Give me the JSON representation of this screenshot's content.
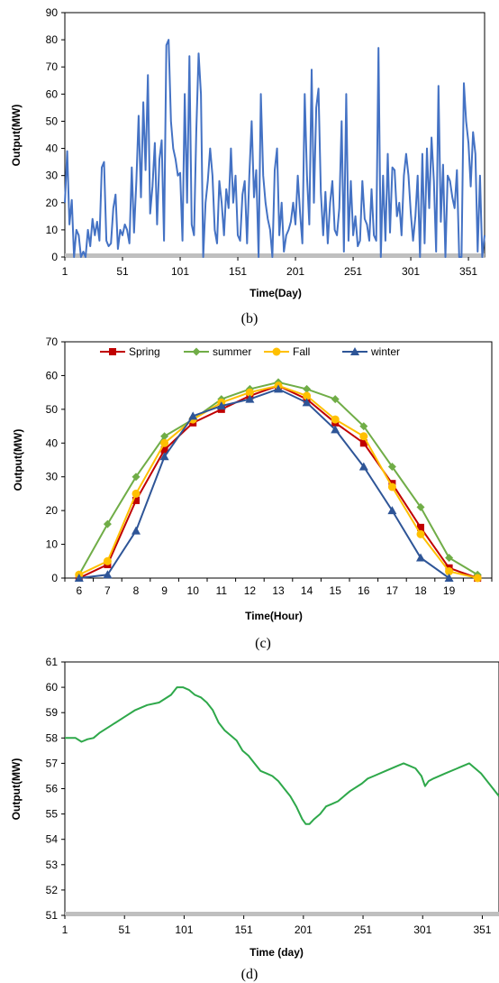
{
  "chart_data": [
    {
      "type": "line",
      "caption": "(b)",
      "xlabel": "Time(Day)",
      "ylabel": "Output(MW)",
      "xlim": [
        1,
        365
      ],
      "ylim": [
        0,
        90
      ],
      "xticks": [
        1,
        51,
        101,
        151,
        201,
        251,
        301,
        351
      ],
      "yticks": [
        0,
        10,
        20,
        30,
        40,
        50,
        60,
        70,
        80,
        90
      ],
      "grid": false,
      "series": [
        {
          "color": "#4472c4",
          "x": [
            1,
            3,
            5,
            7,
            9,
            11,
            13,
            15,
            17,
            19,
            21,
            23,
            25,
            27,
            29,
            31,
            33,
            35,
            37,
            39,
            41,
            43,
            45,
            47,
            49,
            51,
            53,
            55,
            57,
            59,
            61,
            63,
            65,
            67,
            69,
            71,
            73,
            75,
            77,
            79,
            81,
            83,
            85,
            87,
            89,
            91,
            93,
            95,
            97,
            99,
            101,
            103,
            105,
            107,
            109,
            111,
            113,
            115,
            117,
            119,
            121,
            123,
            125,
            127,
            129,
            131,
            133,
            135,
            137,
            139,
            141,
            143,
            145,
            147,
            149,
            151,
            153,
            155,
            157,
            159,
            161,
            163,
            165,
            167,
            169,
            171,
            173,
            175,
            177,
            179,
            181,
            183,
            185,
            187,
            189,
            191,
            193,
            195,
            197,
            199,
            201,
            203,
            205,
            207,
            209,
            211,
            213,
            215,
            217,
            219,
            221,
            223,
            225,
            227,
            229,
            231,
            233,
            235,
            237,
            239,
            241,
            243,
            245,
            247,
            249,
            251,
            253,
            255,
            257,
            259,
            261,
            263,
            265,
            267,
            269,
            271,
            273,
            275,
            277,
            279,
            281,
            283,
            285,
            287,
            289,
            291,
            293,
            295,
            297,
            299,
            301,
            303,
            305,
            307,
            309,
            311,
            313,
            315,
            317,
            319,
            321,
            323,
            325,
            327,
            329,
            331,
            333,
            335,
            337,
            339,
            341,
            343,
            345,
            347,
            349,
            351,
            353,
            355,
            357,
            359,
            361,
            363,
            365
          ],
          "y": [
            20,
            39,
            12,
            21,
            0,
            10,
            8,
            0,
            2,
            0,
            10,
            4,
            14,
            8,
            13,
            6,
            33,
            35,
            6,
            4,
            5,
            18,
            23,
            3,
            10,
            8,
            12,
            10,
            5,
            33,
            9,
            28,
            52,
            22,
            57,
            32,
            67,
            16,
            26,
            42,
            12,
            36,
            43,
            6,
            78,
            80,
            50,
            40,
            36,
            30,
            31,
            6,
            60,
            20,
            74,
            12,
            8,
            46,
            75,
            60,
            0,
            20,
            28,
            40,
            30,
            10,
            5,
            28,
            20,
            8,
            25,
            18,
            40,
            20,
            30,
            8,
            6,
            23,
            28,
            5,
            30,
            50,
            22,
            32,
            0,
            60,
            30,
            20,
            14,
            10,
            0,
            32,
            40,
            8,
            20,
            2,
            8,
            10,
            13,
            20,
            12,
            30,
            16,
            5,
            60,
            30,
            12,
            69,
            20,
            55,
            62,
            24,
            8,
            24,
            5,
            20,
            28,
            10,
            8,
            18,
            50,
            2,
            60,
            6,
            28,
            8,
            15,
            4,
            6,
            28,
            14,
            12,
            6,
            25,
            8,
            6,
            77,
            0,
            30,
            6,
            38,
            9,
            33,
            32,
            15,
            20,
            8,
            30,
            38,
            30,
            16,
            6,
            15,
            30,
            0,
            38,
            5,
            40,
            18,
            44,
            28,
            2,
            63,
            13,
            34,
            0,
            30,
            28,
            22,
            18,
            32,
            0,
            0,
            64,
            50,
            42,
            26,
            46,
            38,
            2,
            30,
            0,
            8
          ]
        }
      ]
    },
    {
      "type": "line",
      "caption": "(c)",
      "xlabel": "Time(Hour)",
      "ylabel": "Output(MW)",
      "ylim": [
        0,
        70
      ],
      "yticks": [
        0,
        10,
        20,
        30,
        40,
        50,
        60,
        70
      ],
      "categories": [
        "6",
        "7",
        "8",
        "9",
        "10",
        "11",
        "12",
        "13",
        "14",
        "15",
        "16",
        "17",
        "18",
        "19",
        ""
      ],
      "grid": false,
      "legend": "top",
      "series": [
        {
          "name": "Spring",
          "color": "#c00000",
          "marker": "square",
          "values": [
            0,
            4,
            23,
            38,
            46,
            50,
            54,
            57,
            53,
            46,
            40,
            28,
            15,
            3,
            0
          ]
        },
        {
          "name": "summer",
          "color": "#70ad47",
          "marker": "diamond",
          "values": [
            1,
            16,
            30,
            42,
            47,
            53,
            56,
            58,
            56,
            53,
            45,
            33,
            21,
            6,
            1
          ]
        },
        {
          "name": "Fall",
          "color": "#ffc000",
          "marker": "circle",
          "values": [
            1,
            5,
            25,
            40,
            47,
            52,
            55,
            57,
            54,
            47,
            42,
            27,
            13,
            2,
            0
          ]
        },
        {
          "name": "winter",
          "color": "#2e5597",
          "marker": "triangle",
          "values": [
            0,
            1,
            14,
            36,
            48,
            51,
            53,
            56,
            52,
            44,
            33,
            20,
            6,
            0,
            null
          ]
        }
      ]
    },
    {
      "type": "line",
      "caption": "(d)",
      "xlabel": "Time (day)",
      "ylabel": "Output(MW)",
      "xlim": [
        1,
        365
      ],
      "ylim": [
        51,
        61
      ],
      "xticks": [
        1,
        51,
        101,
        151,
        201,
        251,
        301,
        351
      ],
      "yticks": [
        51,
        52,
        53,
        54,
        55,
        56,
        57,
        58,
        59,
        60,
        61
      ],
      "grid": false,
      "series": [
        {
          "color": "#2ea84a",
          "x": [
            1,
            10,
            15,
            20,
            25,
            30,
            40,
            50,
            60,
            70,
            80,
            90,
            95,
            100,
            105,
            110,
            115,
            120,
            125,
            130,
            135,
            140,
            145,
            150,
            155,
            160,
            165,
            170,
            175,
            180,
            185,
            190,
            195,
            200,
            203,
            206,
            210,
            215,
            220,
            225,
            230,
            240,
            250,
            255,
            260,
            270,
            280,
            285,
            290,
            295,
            300,
            303,
            306,
            310,
            320,
            330,
            335,
            340,
            345,
            350,
            355,
            360,
            365
          ],
          "y": [
            58.0,
            58.0,
            57.85,
            57.95,
            58.0,
            58.2,
            58.5,
            58.8,
            59.1,
            59.3,
            59.4,
            59.7,
            60.0,
            60.0,
            59.9,
            59.7,
            59.6,
            59.4,
            59.1,
            58.6,
            58.3,
            58.1,
            57.9,
            57.5,
            57.3,
            57.0,
            56.7,
            56.6,
            56.5,
            56.3,
            56.0,
            55.7,
            55.3,
            54.8,
            54.6,
            54.6,
            54.8,
            55.0,
            55.3,
            55.4,
            55.5,
            55.9,
            56.2,
            56.4,
            56.5,
            56.7,
            56.9,
            57.0,
            56.9,
            56.8,
            56.5,
            56.1,
            56.3,
            56.4,
            56.6,
            56.8,
            56.9,
            57.0,
            56.8,
            56.6,
            56.3,
            56.0,
            55.7
          ]
        }
      ]
    }
  ]
}
